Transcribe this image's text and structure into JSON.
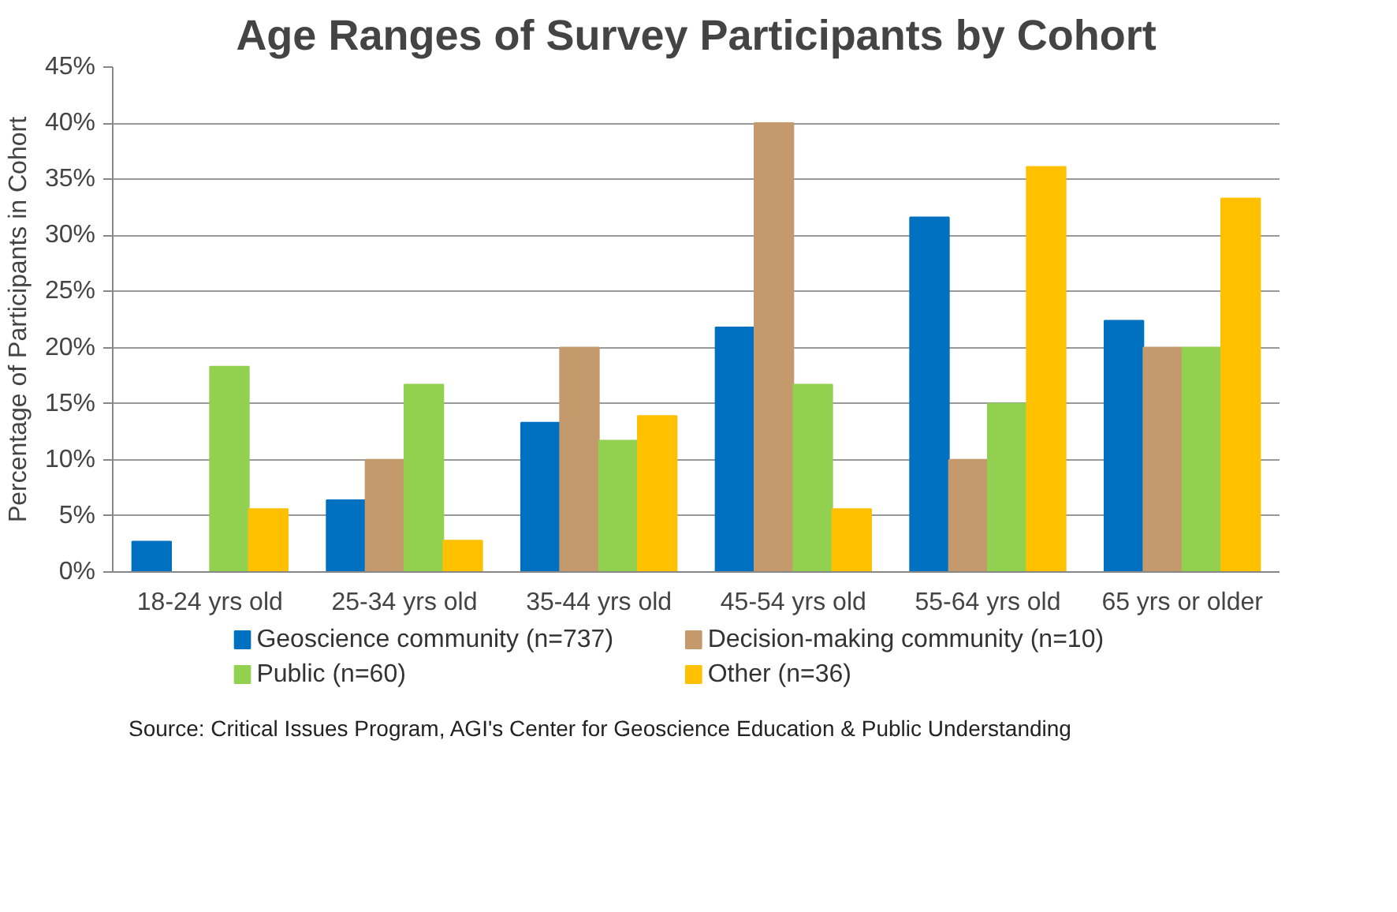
{
  "chart_data": {
    "type": "bar",
    "title": "Age Ranges of Survey Participants by Cohort",
    "ylabel": "Percentage of Participants in Cohort",
    "categories": [
      "18-24 yrs old",
      "25-34 yrs old",
      "35-44 yrs old",
      "45-54 yrs old",
      "55-64 yrs old",
      "65 yrs or older"
    ],
    "series": [
      {
        "name": "Geoscience community (n=737)",
        "color": "#0070c0",
        "values": [
          2.7,
          6.4,
          13.3,
          21.8,
          31.6,
          22.4
        ]
      },
      {
        "name": "Decision-making community (n=10)",
        "color": "#c4996b",
        "values": [
          0,
          10,
          20,
          40,
          10,
          20
        ]
      },
      {
        "name": "Public (n=60)",
        "color": "#92d050",
        "values": [
          18.3,
          16.7,
          11.7,
          16.7,
          15,
          20
        ]
      },
      {
        "name": "Other (n=36)",
        "color": "#ffc000",
        "values": [
          5.6,
          2.8,
          13.9,
          5.6,
          36.1,
          33.3
        ]
      }
    ],
    "ylim": [
      0,
      45
    ],
    "yticks": [
      {
        "value": 0,
        "label": "0%"
      },
      {
        "value": 5,
        "label": "5%"
      },
      {
        "value": 10,
        "label": "10%"
      },
      {
        "value": 15,
        "label": "15%"
      },
      {
        "value": 20,
        "label": "20%"
      },
      {
        "value": 25,
        "label": "25%"
      },
      {
        "value": 30,
        "label": "30%"
      },
      {
        "value": 35,
        "label": "35%"
      },
      {
        "value": 40,
        "label": "40%"
      },
      {
        "value": 45,
        "label": "45%"
      }
    ],
    "grid": "y",
    "legend": "bottom",
    "annotations": [
      "Source: Critical Issues Program, AGI's Center for Geoscience Education & Public Understanding"
    ]
  }
}
